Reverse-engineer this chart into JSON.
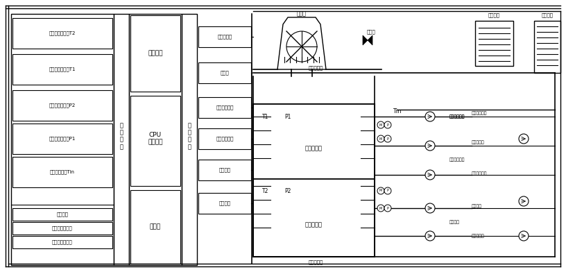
{
  "fig_width": 8.16,
  "fig_height": 3.92,
  "bg_color": "#ffffff",
  "left_sensors_upper": [
    "机组二排气温度T2",
    "机组一排气温度T1",
    "机组二排气压力P2",
    "机组一排气压力P1",
    "冷却进水温度Tin"
  ],
  "left_sensors_lower": [
    "湿球温度",
    "机组一运行信号",
    "机组二运行信号"
  ],
  "ctrl_outputs": [
    "冷却塔风扇",
    "排污阀",
    "变频冷却水泵",
    "工频冷却水泵",
    "冷冻水泵",
    "冷冻水泵"
  ],
  "right_pump_labels": [
    "变频冷却水泵",
    "冷却水管道",
    "工频冷却水泵",
    "冷冻水泵",
    "冷冻水泵"
  ]
}
